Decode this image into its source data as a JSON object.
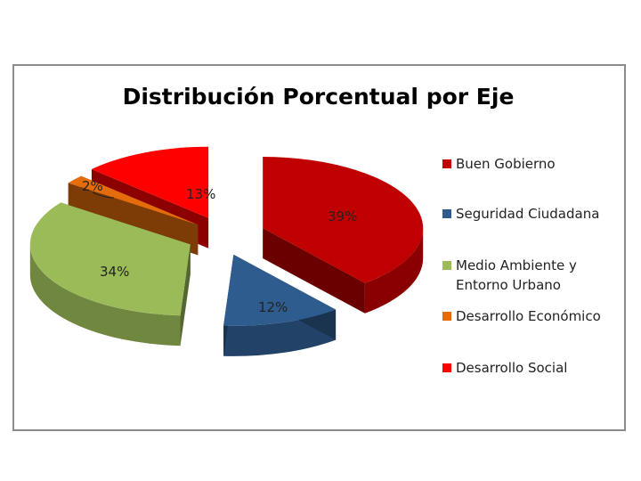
{
  "chart_data": {
    "type": "pie",
    "title": "Distribución Porcentual por Eje",
    "categories": [
      "Buen Gobierno",
      "Seguridad Ciudadana",
      "Medio Ambiente y Entorno Urbano",
      "Desarrollo Económico",
      "Desarrollo Social"
    ],
    "values": [
      39,
      12,
      34,
      2,
      13
    ],
    "data_labels": [
      "39%",
      "12%",
      "34%",
      "2%",
      "13%"
    ],
    "colors": [
      "#c00000",
      "#2f5c8f",
      "#9bbb59",
      "#e46c0a",
      "#ff0000"
    ],
    "exploded": true,
    "three_d": true,
    "legend_position": "right"
  }
}
